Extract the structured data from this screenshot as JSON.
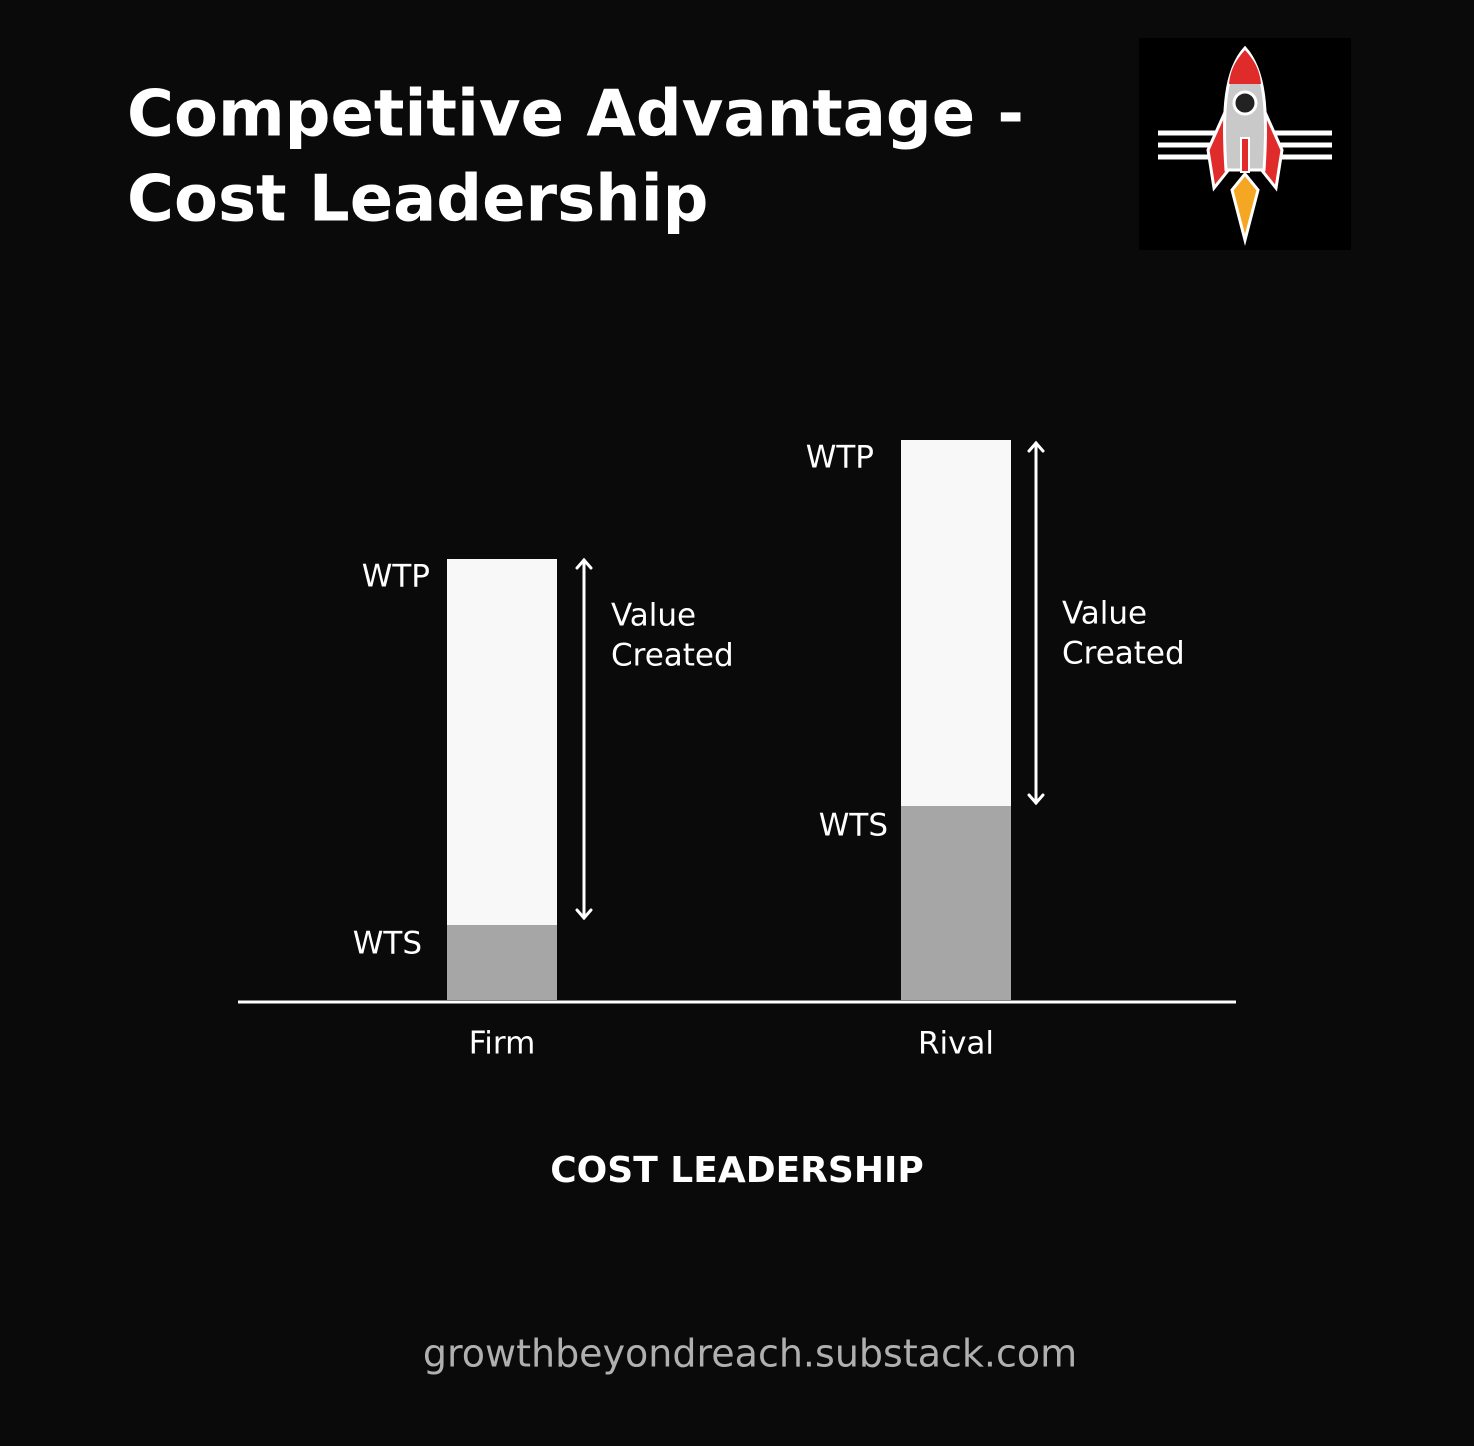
{
  "header": {
    "title_lines": [
      "Competitive Advantage -",
      "Cost Leadership"
    ]
  },
  "diagram": {
    "bars": [
      {
        "name": "Firm",
        "top_label": "WTP",
        "bottom_label": "WTS",
        "span_label": [
          "Value",
          "Created"
        ]
      },
      {
        "name": "Rival",
        "top_label": "WTP",
        "bottom_label": "WTS",
        "span_label": [
          "Value",
          "Created"
        ]
      }
    ]
  },
  "caption": "COST LEADERSHIP",
  "footer": "growthbeyondreach.substack.com"
}
